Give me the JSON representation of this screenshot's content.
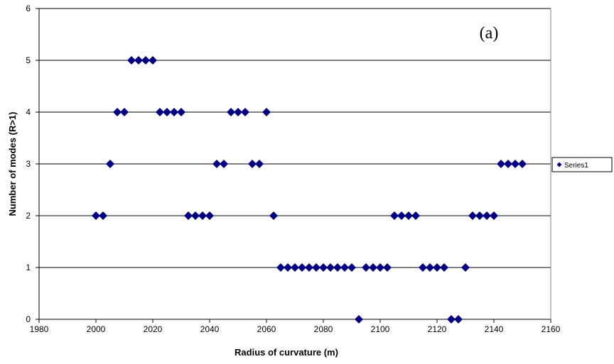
{
  "chart_data": {
    "type": "scatter",
    "annotation": "(a)",
    "xlabel": "Radius of curvature (m)",
    "ylabel": "Number of modes (R>1)",
    "xlim": [
      1980,
      2160
    ],
    "ylim": [
      0,
      6
    ],
    "xticks": [
      1980,
      2000,
      2020,
      2040,
      2060,
      2080,
      2100,
      2120,
      2140,
      2160
    ],
    "yticks": [
      0,
      1,
      2,
      3,
      4,
      5,
      6
    ],
    "grid": "horizontal major gridlines",
    "legend_position": "right",
    "marker": "diamond",
    "series": [
      {
        "name": "Series1",
        "color": "#000080",
        "points": [
          [
            2000,
            2
          ],
          [
            2002.5,
            2
          ],
          [
            2005,
            3
          ],
          [
            2007.5,
            4
          ],
          [
            2010,
            4
          ],
          [
            2012.5,
            5
          ],
          [
            2015,
            5
          ],
          [
            2017.5,
            5
          ],
          [
            2020,
            5
          ],
          [
            2022.5,
            4
          ],
          [
            2025,
            4
          ],
          [
            2027.5,
            4
          ],
          [
            2030,
            4
          ],
          [
            2032.5,
            2
          ],
          [
            2035,
            2
          ],
          [
            2037.5,
            2
          ],
          [
            2040,
            2
          ],
          [
            2042.5,
            3
          ],
          [
            2045,
            3
          ],
          [
            2047.5,
            4
          ],
          [
            2050,
            4
          ],
          [
            2052.5,
            4
          ],
          [
            2055,
            3
          ],
          [
            2057.5,
            3
          ],
          [
            2060,
            4
          ],
          [
            2062.5,
            2
          ],
          [
            2065,
            1
          ],
          [
            2067.5,
            1
          ],
          [
            2070,
            1
          ],
          [
            2072.5,
            1
          ],
          [
            2075,
            1
          ],
          [
            2077.5,
            1
          ],
          [
            2080,
            1
          ],
          [
            2082.5,
            1
          ],
          [
            2085,
            1
          ],
          [
            2087.5,
            1
          ],
          [
            2090,
            1
          ],
          [
            2092.5,
            0
          ],
          [
            2095,
            1
          ],
          [
            2097.5,
            1
          ],
          [
            2100,
            1
          ],
          [
            2102.5,
            1
          ],
          [
            2105,
            2
          ],
          [
            2107.5,
            2
          ],
          [
            2110,
            2
          ],
          [
            2112.5,
            2
          ],
          [
            2115,
            1
          ],
          [
            2117.5,
            1
          ],
          [
            2120,
            1
          ],
          [
            2122.5,
            1
          ],
          [
            2125,
            0
          ],
          [
            2127.5,
            0
          ],
          [
            2130,
            1
          ],
          [
            2132.5,
            2
          ],
          [
            2135,
            2
          ],
          [
            2137.5,
            2
          ],
          [
            2140,
            2
          ],
          [
            2142.5,
            3
          ],
          [
            2145,
            3
          ],
          [
            2147.5,
            3
          ],
          [
            2150,
            3
          ]
        ]
      }
    ]
  }
}
